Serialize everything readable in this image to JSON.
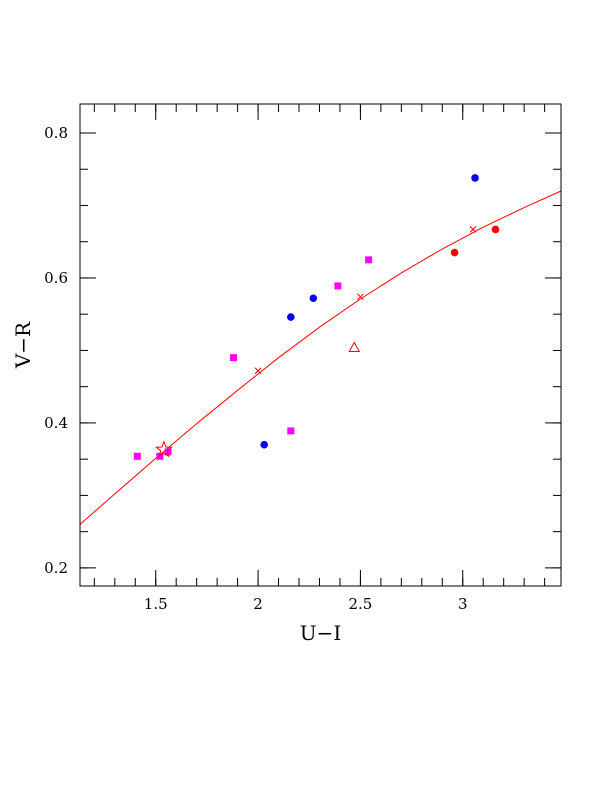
{
  "chart_data": {
    "type": "scatter",
    "title": "",
    "xlabel": "U−I",
    "ylabel": "V−R",
    "xlim": [
      1.13,
      3.48
    ],
    "ylim": [
      0.175,
      0.84
    ],
    "xticks": [
      1.5,
      2,
      2.5,
      3
    ],
    "xtick_labels": [
      "1.5",
      "2",
      "2.5",
      "3"
    ],
    "yticks": [
      0.2,
      0.4,
      0.6,
      0.8
    ],
    "ytick_labels": [
      "0.2",
      "0.4",
      "0.6",
      "0.8"
    ],
    "x_minor_step": 0.1,
    "y_minor_step": 0.05,
    "grid": false,
    "colors": {
      "magenta": "#ff00ff",
      "blue": "#0000ff",
      "red": "#ff0000"
    },
    "series": [
      {
        "marker": "square",
        "color": "#ff00ff",
        "points": [
          [
            1.41,
            0.354
          ],
          [
            1.52,
            0.354
          ],
          [
            1.56,
            0.36
          ],
          [
            1.88,
            0.49
          ],
          [
            2.16,
            0.389
          ],
          [
            2.39,
            0.589
          ],
          [
            2.54,
            0.625
          ]
        ]
      },
      {
        "marker": "circle",
        "color": "#0000ff",
        "points": [
          [
            2.03,
            0.37
          ],
          [
            2.16,
            0.546
          ],
          [
            2.27,
            0.572
          ],
          [
            3.06,
            0.738
          ]
        ]
      },
      {
        "marker": "circle",
        "color": "#ff0000",
        "points": [
          [
            2.96,
            0.635
          ],
          [
            3.16,
            0.667
          ]
        ]
      },
      {
        "marker": "triangle-open",
        "color": "#ff0000",
        "points": [
          [
            2.47,
            0.504
          ]
        ]
      },
      {
        "marker": "star-open",
        "color": "#ff0000",
        "points": [
          [
            1.54,
            0.363
          ]
        ]
      },
      {
        "marker": "cross",
        "color": "#ff0000",
        "points": [
          [
            2.0,
            0.472
          ],
          [
            2.5,
            0.574
          ],
          [
            3.05,
            0.667
          ]
        ]
      }
    ],
    "fit_curve": {
      "color": "#ff0000",
      "x": [
        1.13,
        1.3,
        1.5,
        1.7,
        1.9,
        2.1,
        2.3,
        2.5,
        2.7,
        2.9,
        3.1,
        3.3,
        3.48
      ],
      "y": [
        0.26,
        0.302,
        0.351,
        0.399,
        0.445,
        0.49,
        0.532,
        0.571,
        0.607,
        0.64,
        0.67,
        0.697,
        0.72
      ]
    }
  }
}
